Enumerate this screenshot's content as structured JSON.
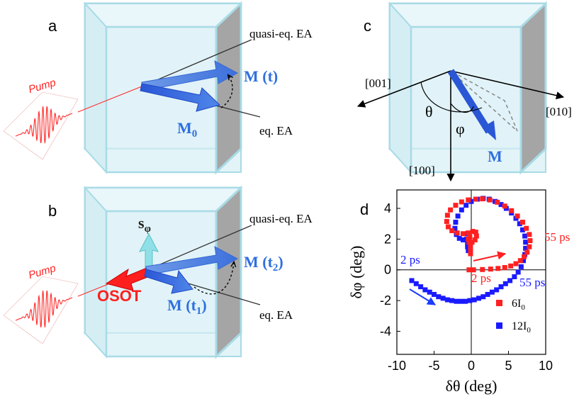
{
  "panels": {
    "a": {
      "label": "a",
      "pump": "Pump",
      "quasi_eq": "quasi-eq. EA",
      "eq": "eq. EA",
      "m_t": "M (t)",
      "m0_base": "M",
      "m0_sub": "0"
    },
    "b": {
      "label": "b",
      "pump": "Pump",
      "quasi_eq": "quasi-eq. EA",
      "eq": "eq. EA",
      "s_base": "s",
      "s_sub": "φ",
      "osot": "OSOT",
      "m_t2_base": "M (t",
      "m_t2_sub": "2",
      "m_t2_close": ")",
      "m_t1_base": "M (t",
      "m_t1_sub": "1",
      "m_t1_close": ")"
    },
    "c": {
      "label": "c",
      "axis_001": "[001]",
      "axis_010": "[010]",
      "axis_100": "[100]",
      "theta": "θ",
      "phi": "φ",
      "m": "M"
    },
    "d": {
      "label": "d"
    }
  },
  "colors": {
    "red": "#ff2020",
    "blue": "#1a1aff",
    "m_blue": "#3a7be0",
    "glass": "#dff2f7",
    "glass_edge": "#a8dbe6",
    "side": "#a5a5a5"
  },
  "chart_data": {
    "type": "scatter",
    "xlabel": "δθ (deg)",
    "ylabel": "δφ (deg)",
    "xlim": [
      -10,
      10
    ],
    "ylim": [
      -5.5,
      5.2
    ],
    "xticks": [
      -10,
      -5,
      0,
      5,
      10
    ],
    "yticks": [
      -4,
      -2,
      0,
      2,
      4
    ],
    "annotations": [
      {
        "text": "55 ps",
        "color": "red"
      },
      {
        "text": "2 ps",
        "color": "red"
      },
      {
        "text": "2 ps",
        "color": "blue"
      },
      {
        "text": "55 ps",
        "color": "blue"
      }
    ],
    "series": [
      {
        "name": "6I0",
        "legend_base": "6I",
        "legend_sub": "0",
        "color": "#ff2020",
        "points": [
          [
            -0.3,
            0.0
          ],
          [
            0.3,
            0.0
          ],
          [
            1.5,
            0.02
          ],
          [
            2.6,
            0.05
          ],
          [
            3.6,
            0.09
          ],
          [
            4.5,
            0.15
          ],
          [
            5.3,
            0.25
          ],
          [
            6.0,
            0.4
          ],
          [
            6.6,
            0.6
          ],
          [
            7.1,
            0.85
          ],
          [
            7.5,
            1.15
          ],
          [
            7.8,
            1.5
          ],
          [
            7.9,
            1.9
          ],
          [
            7.8,
            2.3
          ],
          [
            7.4,
            2.7
          ],
          [
            6.9,
            3.1
          ],
          [
            6.2,
            3.5
          ],
          [
            5.4,
            3.85
          ],
          [
            4.5,
            4.15
          ],
          [
            3.5,
            4.4
          ],
          [
            2.5,
            4.55
          ],
          [
            1.5,
            4.62
          ],
          [
            0.6,
            4.6
          ],
          [
            -0.4,
            4.55
          ],
          [
            -1.3,
            4.42
          ],
          [
            -2.1,
            4.2
          ],
          [
            -2.8,
            3.9
          ],
          [
            -3.2,
            3.55
          ],
          [
            -3.3,
            3.15
          ],
          [
            -3.1,
            2.8
          ],
          [
            -2.6,
            2.55
          ],
          [
            -1.9,
            2.4
          ],
          [
            -1.1,
            2.35
          ],
          [
            -0.4,
            2.4
          ],
          [
            0.2,
            2.5
          ],
          [
            0.6,
            2.45
          ],
          [
            0.7,
            2.2
          ],
          [
            0.5,
            1.95
          ],
          [
            0.1,
            1.8
          ],
          [
            -0.3,
            1.8
          ],
          [
            -0.4,
            2.0
          ],
          [
            -0.2,
            2.15
          ],
          [
            -0.1,
            1.6
          ],
          [
            -0.1,
            1.3
          ],
          [
            -0.1,
            1.05
          ]
        ]
      },
      {
        "name": "12I0",
        "legend_base": "12I",
        "legend_sub": "0",
        "color": "#1a1aff",
        "points": [
          [
            -8.0,
            -0.7
          ],
          [
            -7.4,
            -0.9
          ],
          [
            -6.8,
            -1.1
          ],
          [
            -6.2,
            -1.3
          ],
          [
            -5.6,
            -1.45
          ],
          [
            -5.0,
            -1.6
          ],
          [
            -4.4,
            -1.75
          ],
          [
            -3.8,
            -1.85
          ],
          [
            -3.2,
            -1.95
          ],
          [
            -2.6,
            -2.0
          ],
          [
            -2.0,
            -2.05
          ],
          [
            -1.4,
            -2.05
          ],
          [
            -0.8,
            -2.05
          ],
          [
            -0.2,
            -2.0
          ],
          [
            0.4,
            -1.95
          ],
          [
            1.0,
            -1.85
          ],
          [
            1.6,
            -1.75
          ],
          [
            2.2,
            -1.6
          ],
          [
            2.8,
            -1.45
          ],
          [
            3.4,
            -1.3
          ],
          [
            4.0,
            -1.1
          ],
          [
            4.6,
            -0.9
          ],
          [
            5.2,
            -0.7
          ],
          [
            5.8,
            -0.45
          ],
          [
            6.3,
            -0.15
          ],
          [
            6.7,
            0.2
          ],
          [
            7.0,
            0.6
          ],
          [
            7.2,
            1.0
          ],
          [
            7.3,
            1.4
          ],
          [
            7.3,
            1.8
          ],
          [
            7.2,
            2.2
          ],
          [
            6.9,
            2.6
          ],
          [
            6.5,
            3.0
          ],
          [
            6.0,
            3.35
          ],
          [
            5.4,
            3.7
          ],
          [
            4.7,
            4.0
          ],
          [
            4.0,
            4.25
          ],
          [
            3.2,
            4.45
          ],
          [
            2.4,
            4.6
          ],
          [
            1.6,
            4.65
          ],
          [
            0.8,
            4.6
          ],
          [
            0.0,
            4.45
          ],
          [
            -0.7,
            4.2
          ],
          [
            -1.3,
            3.9
          ],
          [
            -1.8,
            3.5
          ],
          [
            -2.1,
            3.1
          ],
          [
            -2.2,
            2.7
          ],
          [
            -2.0,
            2.3
          ],
          [
            -1.6,
            2.05
          ],
          [
            -1.1,
            1.95
          ],
          [
            -0.6,
            2.0
          ],
          [
            -0.5,
            2.35
          ],
          [
            -0.5,
            1.8
          ],
          [
            -0.5,
            1.5
          ],
          [
            -0.4,
            1.25
          ]
        ]
      }
    ]
  }
}
